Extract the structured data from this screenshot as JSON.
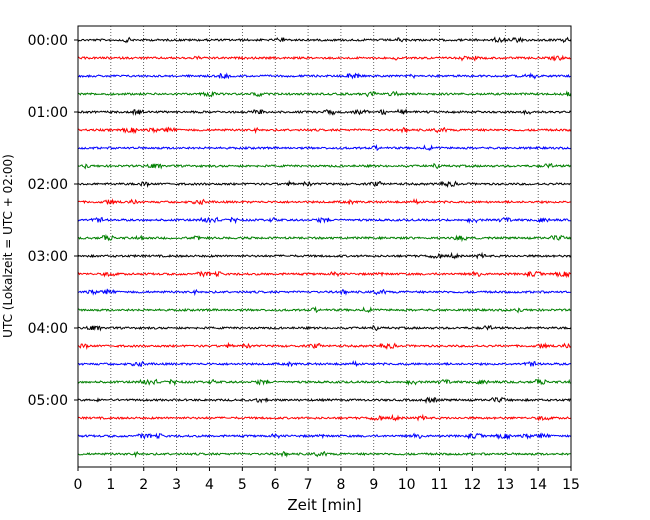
{
  "chart_data": {
    "type": "line",
    "title": "",
    "xlabel": "Zeit  [min]",
    "ylabel": "UTC (Lokalzeit = UTC + 02:00)",
    "xlim": [
      0,
      15
    ],
    "x_ticks": [
      0,
      1,
      2,
      3,
      4,
      5,
      6,
      7,
      8,
      9,
      10,
      11,
      12,
      13,
      14,
      15
    ],
    "x_tick_labels": [
      "0",
      "1",
      "2",
      "3",
      "4",
      "5",
      "6",
      "7",
      "8",
      "9",
      "10",
      "11",
      "12",
      "13",
      "14",
      "15"
    ],
    "grid": "vertical dotted",
    "line_start_utc": "00:00",
    "line_duration_min": 15,
    "line_count": 24,
    "y_tick_labels": [
      {
        "line_index": 0,
        "label": "00:00"
      },
      {
        "line_index": 4,
        "label": "01:00"
      },
      {
        "line_index": 8,
        "label": "02:00"
      },
      {
        "line_index": 12,
        "label": "03:00"
      },
      {
        "line_index": 16,
        "label": "04:00"
      },
      {
        "line_index": 20,
        "label": "05:00"
      }
    ],
    "trace_colors": [
      "#000000",
      "#ff0000",
      "#0000ff",
      "#008000"
    ],
    "trace_amplitude": "low-level noise, small bursts"
  }
}
